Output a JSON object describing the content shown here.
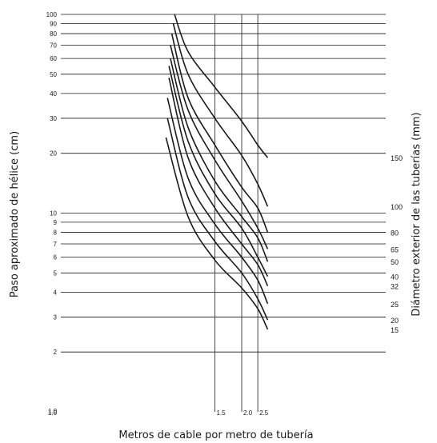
{
  "chart_data": {
    "type": "line",
    "xlabel": "Metros de cable por metro de tubería",
    "ylabel": "Paso aproximado de hélice (cm)",
    "y2label": "Diámetro exterior de las tuberías (mm)",
    "x_scale": "reciprocal",
    "y_scale": "log",
    "xlim": [
      1.0,
      2.95
    ],
    "ylim": [
      1.0,
      100
    ],
    "x_ticks": [
      "1.0",
      "1.5",
      "2.0",
      "2.5"
    ],
    "y_ticks": [
      "1.0",
      "2",
      "3",
      "4",
      "5",
      "6",
      "7",
      "8",
      "9",
      "10",
      "20",
      "30",
      "40",
      "50",
      "60",
      "70",
      "80",
      "90",
      "100"
    ],
    "grid": true,
    "series": [
      {
        "name": "150",
        "x": [
          1.09,
          1.2,
          1.5,
          2.0,
          2.5,
          2.95
        ],
        "y": [
          100,
          65,
          43,
          29,
          22,
          19
        ]
      },
      {
        "name": "100",
        "x": [
          1.08,
          1.2,
          1.5,
          2.0,
          2.5,
          2.95
        ],
        "y": [
          90,
          50,
          30,
          19.5,
          14,
          10.8
        ]
      },
      {
        "name": "80",
        "x": [
          1.07,
          1.2,
          1.5,
          2.0,
          2.5,
          2.95
        ],
        "y": [
          80,
          38,
          22,
          13.5,
          10.6,
          8
        ]
      },
      {
        "name": "65",
        "x": [
          1.06,
          1.2,
          1.5,
          2.0,
          2.5,
          2.95
        ],
        "y": [
          70,
          33,
          18.5,
          11.5,
          8.4,
          6.6
        ]
      },
      {
        "name": "50",
        "x": [
          1.06,
          1.2,
          1.5,
          2.0,
          2.5,
          2.95
        ],
        "y": [
          60,
          27,
          14.5,
          9.6,
          7.5,
          5.7
        ]
      },
      {
        "name": "40",
        "x": [
          1.05,
          1.2,
          1.5,
          2.0,
          2.5,
          2.95
        ],
        "y": [
          55,
          23,
          12.5,
          8.4,
          6.0,
          4.8
        ]
      },
      {
        "name": "32",
        "x": [
          1.05,
          1.2,
          1.5,
          2.0,
          2.5,
          2.95
        ],
        "y": [
          48,
          19,
          10.6,
          7.0,
          5.5,
          4.3
        ]
      },
      {
        "name": "25",
        "x": [
          1.04,
          1.2,
          1.5,
          2.0,
          2.5,
          2.95
        ],
        "y": [
          38,
          15,
          8.8,
          6.0,
          4.6,
          3.5
        ]
      },
      {
        "name": "20",
        "x": [
          1.04,
          1.2,
          1.5,
          2.0,
          2.5,
          2.95
        ],
        "y": [
          30,
          12,
          7.2,
          5.0,
          3.7,
          2.9
        ]
      },
      {
        "name": "15",
        "x": [
          1.03,
          1.2,
          1.5,
          2.0,
          2.5,
          2.95
        ],
        "y": [
          24,
          9.6,
          5.8,
          4.2,
          3.3,
          2.6
        ]
      }
    ]
  }
}
